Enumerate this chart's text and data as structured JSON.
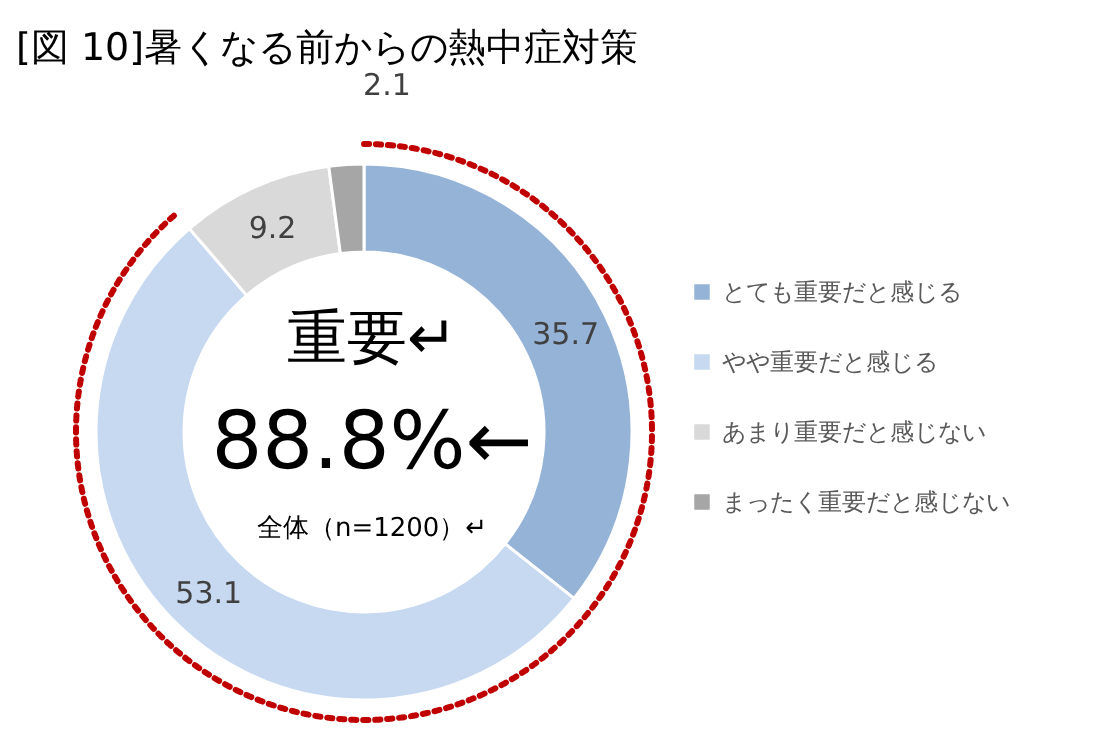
{
  "chart_data": {
    "type": "donut",
    "title": "[図 10]暑くなる前からの熱中症対策",
    "categories": [
      "とても重要だと感じる",
      "やや重要だと感じる",
      "あまり重要だと感じない",
      "まったく重要だと感じない"
    ],
    "values": [
      35.7,
      53.1,
      9.2,
      2.1
    ],
    "colors": [
      "#95b3d7",
      "#c6d9f1",
      "#d9d9d9",
      "#a6a6a6"
    ],
    "data_labels": true,
    "legend": "right",
    "annotations": [
      "重要↵",
      "88.8%←",
      "全体（n=1200）↵"
    ]
  }
}
